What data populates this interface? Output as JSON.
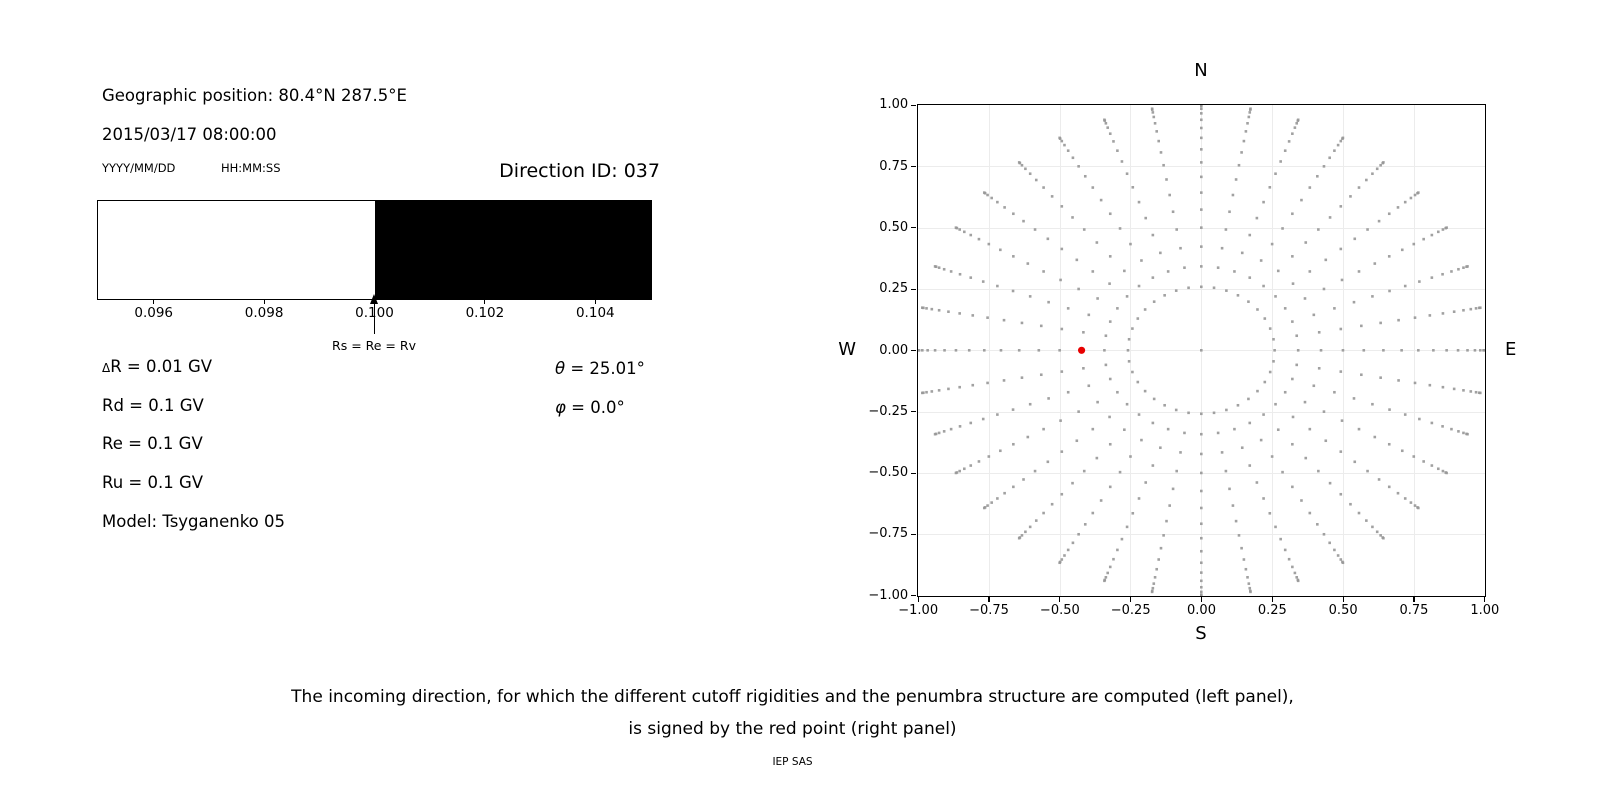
{
  "left_panel": {
    "geo_position": "Geographic position: 80.4°N 287.5°E",
    "datetime": "2015/03/17 08:00:00",
    "date_format": "YYYY/MM/DD",
    "time_format": "HH:MM:SS",
    "direction_id": "Direction ID: 037",
    "params": {
      "delta_symbol": "Δ",
      "delta_rest": "R = 0.01 GV",
      "theta_symbol": "θ",
      "theta_rest": " = 25.01°",
      "rd": "Rd = 0.1 GV",
      "phi_symbol": "φ",
      "phi_rest": " = 0.0°",
      "re": "Re = 0.1 GV",
      "ru": "Ru = 0.1 GV",
      "model": "Model: Tsyganenko 05"
    }
  },
  "caption": {
    "line1": "The incoming direction, for which the different cutoff rigidities and the penumbra structure are computed (left panel),",
    "line2": "is signed by the red point (right panel)",
    "credit": "IEP SAS"
  },
  "colors": {
    "dot_gray": "#979797",
    "red_point": "#e80000",
    "grid": "#ececec",
    "penumbra_forbidden": "#000000",
    "penumbra_allowed": "#ffffff"
  },
  "chart_data": [
    {
      "type": "bar",
      "name": "penumbra-structure",
      "xlim": [
        0.095,
        0.105
      ],
      "x_unit": "GV",
      "segments": [
        {
          "from": 0.095,
          "to": 0.1,
          "color": "#ffffff",
          "meaning": "allowed rigidities"
        },
        {
          "from": 0.1,
          "to": 0.105,
          "color": "#000000",
          "meaning": "forbidden rigidities"
        }
      ],
      "boundary": 0.1,
      "ticks": [
        {
          "value": 0.096,
          "label": "0.096"
        },
        {
          "value": 0.098,
          "label": "0.098"
        },
        {
          "value": 0.1,
          "label": "0.100"
        },
        {
          "value": 0.102,
          "label": "0.102"
        },
        {
          "value": 0.104,
          "label": "0.104"
        }
      ],
      "annotation": {
        "x": 0.1,
        "label": "Rs = Re = Rv"
      }
    },
    {
      "type": "scatter",
      "name": "incoming-direction-grid",
      "xlim": [
        -1,
        1
      ],
      "ylim": [
        -1,
        1
      ],
      "grid": true,
      "tick_values": [
        -1,
        -0.75,
        -0.5,
        -0.25,
        0,
        0.25,
        0.5,
        0.75,
        1
      ],
      "xtick_labels": [
        "−1.00",
        "−0.75",
        "−0.50",
        "−0.25",
        "0.00",
        "0.25",
        "0.50",
        "0.75",
        "1.00"
      ],
      "ytick_labels": [
        "−1.00",
        "−0.75",
        "−0.50",
        "−0.25",
        "0.00",
        "0.25",
        "0.50",
        "0.75",
        "1.00"
      ],
      "compass": {
        "top": "N",
        "bottom": "S",
        "left": "W",
        "right": "E"
      },
      "pattern": {
        "description": "gray dots at x = sin(zenith)·cos(azimuth), y = sin(zenith)·sin(azimuth)",
        "azimuth_deg": {
          "start": 0,
          "step": 10,
          "count": 36
        },
        "zenith_deg": {
          "start": 15,
          "step": 5,
          "end": 90
        },
        "includes_center_point": true,
        "marker": "square",
        "marker_size_px": 2.6,
        "color": "#979797"
      },
      "red_point": {
        "x": -0.4226,
        "y": 0.0,
        "zenith_deg": 25.01,
        "azimuth_deg": 0.0,
        "color": "#e80000",
        "radius_px": 3.6
      }
    }
  ]
}
